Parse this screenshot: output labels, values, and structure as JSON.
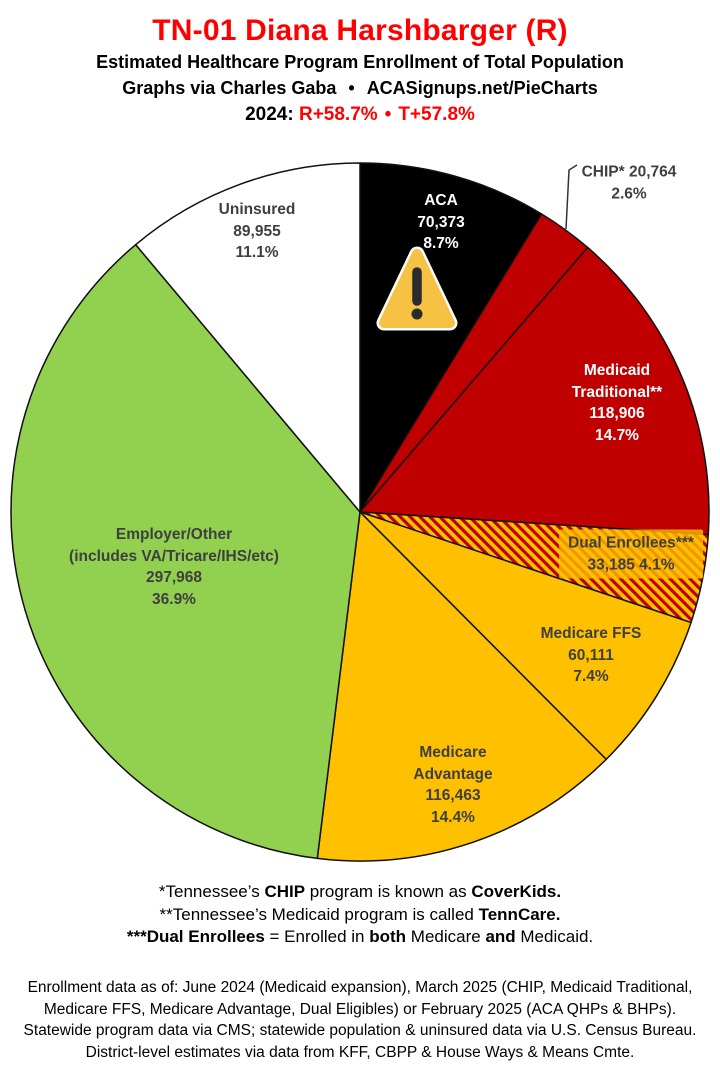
{
  "header": {
    "title": "TN-01 Diana Harshbarger (R)",
    "subtitle": "Estimated Healthcare Program Enrollment of Total Population",
    "credit_left": "Graphs via Charles Gaba",
    "credit_sep": "•",
    "credit_right": "ACASignups.net/PieCharts",
    "partisan_prefix": "2024:",
    "partisan_r": "R+58.7%",
    "partisan_sep": "•",
    "partisan_t": "T+57.8%"
  },
  "colors": {
    "accent_red": "#FF0000",
    "label_gray": "#3F3F3F",
    "slice_black": "#000000",
    "slice_red": "#C00000",
    "slice_gold": "#FFC000",
    "slice_green": "#92D050",
    "slice_white": "#FFFFFF",
    "hatch_base": "#FFC000",
    "hatch_stripe": "#C00000",
    "warning_yellow": "#F5C243",
    "warning_glyph": "#2B2B2B",
    "outline": "#111111"
  },
  "chart_data": {
    "type": "pie",
    "title": "Estimated Healthcare Program Enrollment of Total Population",
    "start_angle_deg": 0,
    "direction": "clockwise",
    "legend": "none (direct labels)",
    "slices": [
      {
        "name": "ACA",
        "value": 70373,
        "pct": 8.7,
        "color": "#000000",
        "label_placement": "inside",
        "lines": [
          "ACA",
          "70,373",
          "8.7%"
        ]
      },
      {
        "name": "CHIP",
        "value": 20764,
        "pct": 2.6,
        "color": "#C00000",
        "label_placement": "outside-callout",
        "lines": [
          "CHIP* 20,764",
          "2.6%"
        ]
      },
      {
        "name": "Medicaid Traditional",
        "value": 118906,
        "pct": 14.7,
        "color": "#C00000",
        "label_placement": "inside",
        "lines": [
          "Medicaid",
          "Traditional**",
          "118,906",
          "14.7%"
        ]
      },
      {
        "name": "Dual Enrollees",
        "value": 33185,
        "pct": 4.1,
        "color": "hatch",
        "pattern": "hatch",
        "label_placement": "inside-highlight",
        "lines": [
          "Dual Enrollees***",
          "33,185  4.1%"
        ]
      },
      {
        "name": "Medicare FFS",
        "value": 60111,
        "pct": 7.4,
        "color": "#FFC000",
        "label_placement": "inside",
        "lines": [
          "Medicare FFS",
          "60,111",
          "7.4%"
        ]
      },
      {
        "name": "Medicare Advantage",
        "value": 116463,
        "pct": 14.4,
        "color": "#FFC000",
        "label_placement": "inside",
        "lines": [
          "Medicare",
          "Advantage",
          "116,463",
          "14.4%"
        ]
      },
      {
        "name": "Employer/Other",
        "value": 297968,
        "pct": 36.9,
        "color": "#92D050",
        "label_placement": "inside",
        "lines": [
          "Employer/Other",
          "(includes VA/Tricare/IHS/etc)",
          "297,968",
          "36.9%"
        ]
      },
      {
        "name": "Uninsured",
        "value": 89955,
        "pct": 11.1,
        "color": "#FFFFFF",
        "label_placement": "inside",
        "lines": [
          "Uninsured",
          "89,955",
          "11.1%"
        ]
      }
    ]
  },
  "icons": {
    "warning": "warning-triangle-icon"
  },
  "footnotes": [
    {
      "parts": [
        {
          "text": "*Tennessee’s ",
          "bold": false
        },
        {
          "text": "CHIP",
          "bold": true
        },
        {
          "text": " program is known as ",
          "bold": false
        },
        {
          "text": "CoverKids.",
          "bold": true
        }
      ]
    },
    {
      "parts": [
        {
          "text": "**Tennessee’s Medicaid program is called ",
          "bold": false
        },
        {
          "text": "TennCare.",
          "bold": true
        }
      ]
    },
    {
      "parts": [
        {
          "text": "***Dual Enrollees",
          "bold": true
        },
        {
          "text": " = Enrolled in ",
          "bold": false
        },
        {
          "text": "both",
          "bold": true
        },
        {
          "text": " Medicare ",
          "bold": false
        },
        {
          "text": "and",
          "bold": true
        },
        {
          "text": " Medicaid.",
          "bold": false
        }
      ]
    },
    {
      "parts": []
    }
  ],
  "source_note_lines": [
    "Enrollment data as of: June 2024 (Medicaid expansion), March 2025 (CHIP, Medicaid Traditional,",
    "Medicare FFS, Medicare Advantage, Dual Eligibles) or February 2025 (ACA QHPs & BHPs).",
    "Statewide program data via CMS; statewide population & uninsured data via U.S. Census Bureau.",
    "District-level estimates via data from KFF, CBPP & House Ways & Means Cmte."
  ]
}
